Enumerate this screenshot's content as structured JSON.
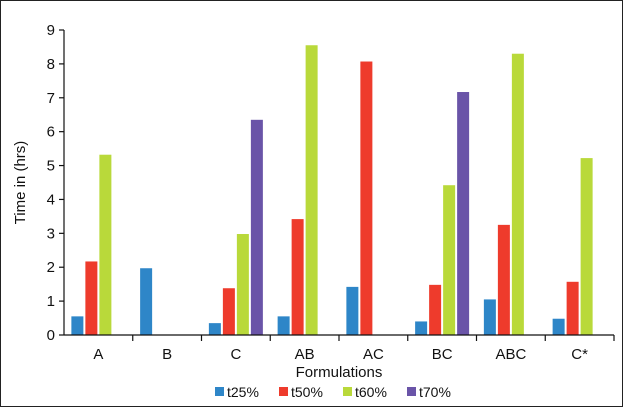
{
  "chart_data": {
    "type": "bar",
    "title": "",
    "xlabel": "Formulations",
    "ylabel": "Time in (hrs)",
    "ylim": [
      0,
      9
    ],
    "yticks": [
      "0",
      "1",
      "2",
      "3",
      "4",
      "5",
      "6",
      "7",
      "8",
      "9"
    ],
    "categories": [
      "A",
      "B",
      "C",
      "AB",
      "AC",
      "BC",
      "ABC",
      "C*"
    ],
    "series": [
      {
        "name": "t25%",
        "color": "#2e86c8",
        "values": [
          0.55,
          1.97,
          0.35,
          0.55,
          1.42,
          0.4,
          1.05,
          0.48
        ]
      },
      {
        "name": "t50%",
        "color": "#ee3b2c",
        "values": [
          2.17,
          null,
          1.38,
          3.42,
          8.07,
          1.48,
          3.25,
          1.57
        ]
      },
      {
        "name": "t60%",
        "color": "#b9d93a",
        "values": [
          5.32,
          null,
          2.98,
          8.55,
          null,
          4.42,
          8.3,
          5.22
        ]
      },
      {
        "name": "t70%",
        "color": "#6a54a8",
        "values": [
          null,
          null,
          6.35,
          null,
          null,
          7.17,
          null,
          null
        ]
      }
    ],
    "grid": false,
    "legend_position": "bottom"
  }
}
